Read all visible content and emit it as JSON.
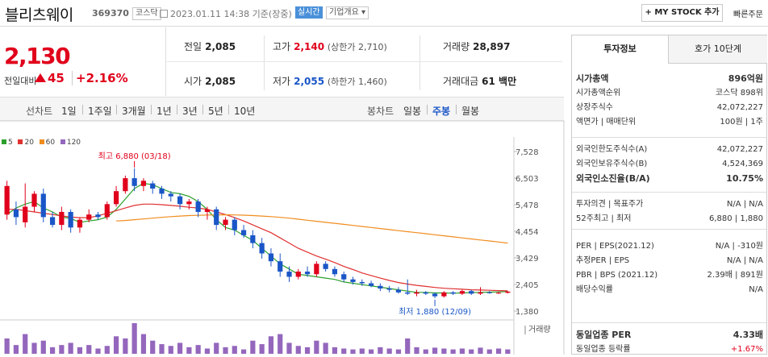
{
  "header": {
    "stock_name": "블리츠웨이",
    "stock_code": "369370",
    "market_badge": "코스닥",
    "datetime": "2023.01.11 14:38 기준(장중)",
    "realtime_badge": "실시간",
    "company_overview": "기업개요 ▾",
    "mystock_button": "+ MY STOCK 추가",
    "quick_order": "빠른주문"
  },
  "price": {
    "current": "2,130",
    "change_label": "전일대비",
    "change_value": "45",
    "change_pct": "+2.16%",
    "color_up": "#e0001b"
  },
  "quote": {
    "prev_close_label": "전일",
    "prev_close": "2,085",
    "high_label": "고가",
    "high": "2,140",
    "upper_limit": "(상한가 2,710)",
    "volume_label": "거래량",
    "volume": "28,897",
    "open_label": "시가",
    "open": "2,085",
    "low_label": "저가",
    "low": "2,055",
    "lower_limit": "(하한가 1,460)",
    "trade_value_label": "거래대금",
    "trade_value": "61 백만"
  },
  "chart_tabs": {
    "line_label": "선차트",
    "periods": [
      "1일",
      "1주일",
      "3개월",
      "1년",
      "3년",
      "5년",
      "10년"
    ],
    "candle_label": "봉차트",
    "candle_periods": [
      "일봉",
      "주봉",
      "월봉"
    ],
    "active_candle": "주봉"
  },
  "chart_legend": [
    {
      "label": "5",
      "color": "#2ca02c"
    },
    {
      "label": "20",
      "color": "#e03030"
    },
    {
      "label": "60",
      "color": "#f08c1e"
    },
    {
      "label": "120",
      "color": "#9467bd"
    }
  ],
  "chart_data": {
    "type": "candlestick",
    "y_ticks": [
      "7,528",
      "6,503",
      "5,478",
      "4,454",
      "3,429",
      "2,405",
      "1,380"
    ],
    "ylim": [
      1380,
      7528
    ],
    "high_annotation": "최고 6,880 (03/18)",
    "low_annotation": "최저 1,880 (12/09)",
    "volume_label": "거래량",
    "series": [
      {
        "name": "5",
        "color": "#2ca02c",
        "values": [
          5100,
          5350,
          5500,
          5600,
          5350,
          5200,
          5000,
          4950,
          4800,
          4850,
          4900,
          5000,
          5300,
          5700,
          6100,
          6300,
          6250,
          6100,
          5950,
          5900,
          5800,
          5600,
          5300,
          4900,
          4600,
          4500,
          4300,
          4100,
          3800,
          3500,
          3200,
          3000,
          2800,
          2750,
          2700,
          2650,
          2600,
          2500,
          2450,
          2400,
          2350,
          2300,
          2250,
          2200,
          2150,
          2100,
          2100,
          2080,
          2080,
          2070,
          2080,
          2090,
          2100,
          2110,
          2120,
          2130
        ]
      },
      {
        "name": "20",
        "color": "#e03030",
        "values": [
          5300,
          5300,
          5250,
          5200,
          5150,
          5100,
          5050,
          5000,
          4980,
          4980,
          5050,
          5150,
          5250,
          5350,
          5450,
          5500,
          5500,
          5480,
          5450,
          5420,
          5380,
          5350,
          5300,
          5200,
          5100,
          4980,
          4850,
          4700,
          4550,
          4400,
          4200,
          4000,
          3800,
          3650,
          3500,
          3380,
          3250,
          3100,
          2980,
          2850,
          2750,
          2650,
          2560,
          2480,
          2420,
          2370,
          2330,
          2290,
          2260,
          2240,
          2220,
          2200,
          2190,
          2180,
          2170,
          2160
        ]
      },
      {
        "name": "60",
        "color": "#f08c1e",
        "values": [
          null,
          null,
          null,
          null,
          null,
          null,
          null,
          null,
          null,
          null,
          null,
          null,
          4850,
          4870,
          4900,
          4930,
          4960,
          4990,
          5020,
          5040,
          5060,
          5070,
          5080,
          5085,
          5090,
          5085,
          5075,
          5060,
          5040,
          5020,
          4990,
          4960,
          4920,
          4880,
          4840,
          4800,
          4760,
          4720,
          4680,
          4640,
          4600,
          4560,
          4520,
          4480,
          4440,
          4400,
          4360,
          4320,
          4280,
          4240,
          4200,
          4160,
          4120,
          4080,
          4040,
          4000
        ]
      }
    ],
    "candles": [
      {
        "o": 5100,
        "c": 6200,
        "h": 6400,
        "l": 4900
      },
      {
        "o": 5300,
        "c": 5000,
        "h": 5600,
        "l": 4700
      },
      {
        "o": 4800,
        "c": 5400,
        "h": 6300,
        "l": 4600
      },
      {
        "o": 5400,
        "c": 5900,
        "h": 6000,
        "l": 5200
      },
      {
        "o": 5900,
        "c": 5000,
        "h": 6100,
        "l": 4800
      },
      {
        "o": 5000,
        "c": 4700,
        "h": 5200,
        "l": 4600
      },
      {
        "o": 4700,
        "c": 5200,
        "h": 5400,
        "l": 4500
      },
      {
        "o": 5200,
        "c": 4600,
        "h": 5300,
        "l": 4400
      },
      {
        "o": 4600,
        "c": 4900,
        "h": 5000,
        "l": 4400
      },
      {
        "o": 4900,
        "c": 5100,
        "h": 5300,
        "l": 4800
      },
      {
        "o": 5100,
        "c": 5000,
        "h": 5200,
        "l": 4900
      },
      {
        "o": 5000,
        "c": 5500,
        "h": 5600,
        "l": 4900
      },
      {
        "o": 5500,
        "c": 6000,
        "h": 6200,
        "l": 5400
      },
      {
        "o": 6000,
        "c": 6500,
        "h": 6600,
        "l": 5900
      },
      {
        "o": 6500,
        "c": 6200,
        "h": 6880,
        "l": 6000
      },
      {
        "o": 6200,
        "c": 6400,
        "h": 6500,
        "l": 6000
      },
      {
        "o": 6300,
        "c": 6100,
        "h": 6400,
        "l": 5900
      },
      {
        "o": 6100,
        "c": 5900,
        "h": 6200,
        "l": 5700
      },
      {
        "o": 5900,
        "c": 5800,
        "h": 6000,
        "l": 5600
      },
      {
        "o": 5800,
        "c": 5500,
        "h": 5900,
        "l": 5300
      },
      {
        "o": 5500,
        "c": 5600,
        "h": 5700,
        "l": 5300
      },
      {
        "o": 5600,
        "c": 5200,
        "h": 5700,
        "l": 5000
      },
      {
        "o": 5200,
        "c": 5300,
        "h": 5400,
        "l": 4900
      },
      {
        "o": 5300,
        "c": 4700,
        "h": 5400,
        "l": 4500
      },
      {
        "o": 4700,
        "c": 4900,
        "h": 5000,
        "l": 4500
      },
      {
        "o": 4900,
        "c": 4500,
        "h": 5000,
        "l": 4300
      },
      {
        "o": 4500,
        "c": 4300,
        "h": 4700,
        "l": 4200
      },
      {
        "o": 4300,
        "c": 4000,
        "h": 4500,
        "l": 3800
      },
      {
        "o": 4000,
        "c": 3600,
        "h": 4200,
        "l": 3400
      },
      {
        "o": 3600,
        "c": 3300,
        "h": 3800,
        "l": 3100
      },
      {
        "o": 3300,
        "c": 2900,
        "h": 3600,
        "l": 2700
      },
      {
        "o": 2900,
        "c": 2700,
        "h": 3100,
        "l": 2500
      },
      {
        "o": 2700,
        "c": 2900,
        "h": 3000,
        "l": 2600
      },
      {
        "o": 2900,
        "c": 2800,
        "h": 3100,
        "l": 2700
      },
      {
        "o": 2800,
        "c": 3200,
        "h": 3300,
        "l": 2700
      },
      {
        "o": 3200,
        "c": 3000,
        "h": 3300,
        "l": 2900
      },
      {
        "o": 3000,
        "c": 2800,
        "h": 3100,
        "l": 2700
      },
      {
        "o": 2800,
        "c": 2600,
        "h": 2900,
        "l": 2500
      },
      {
        "o": 2600,
        "c": 2500,
        "h": 2700,
        "l": 2400
      },
      {
        "o": 2500,
        "c": 2450,
        "h": 2600,
        "l": 2350
      },
      {
        "o": 2450,
        "c": 2350,
        "h": 2550,
        "l": 2300
      },
      {
        "o": 2350,
        "c": 2250,
        "h": 2450,
        "l": 2150
      },
      {
        "o": 2250,
        "c": 2200,
        "h": 2350,
        "l": 2100
      },
      {
        "o": 2200,
        "c": 2100,
        "h": 2300,
        "l": 2050
      },
      {
        "o": 2100,
        "c": 2050,
        "h": 2600,
        "l": 2000
      },
      {
        "o": 2050,
        "c": 2100,
        "h": 2200,
        "l": 1950
      },
      {
        "o": 2100,
        "c": 2050,
        "h": 2150,
        "l": 2000
      },
      {
        "o": 2050,
        "c": 1950,
        "h": 2100,
        "l": 1880
      },
      {
        "o": 1950,
        "c": 2100,
        "h": 2150,
        "l": 1900
      },
      {
        "o": 2100,
        "c": 2050,
        "h": 2150,
        "l": 2000
      },
      {
        "o": 2050,
        "c": 2150,
        "h": 2200,
        "l": 2000
      },
      {
        "o": 2150,
        "c": 2050,
        "h": 2200,
        "l": 2000
      },
      {
        "o": 2050,
        "c": 2100,
        "h": 2300,
        "l": 2000
      },
      {
        "o": 2100,
        "c": 2080,
        "h": 2150,
        "l": 2050
      },
      {
        "o": 2080,
        "c": 2085,
        "h": 2120,
        "l": 2040
      },
      {
        "o": 2085,
        "c": 2130,
        "h": 2140,
        "l": 2055
      }
    ],
    "volumes": [
      35,
      20,
      45,
      25,
      30,
      15,
      20,
      25,
      15,
      20,
      12,
      18,
      40,
      35,
      70,
      45,
      30,
      22,
      18,
      25,
      15,
      20,
      12,
      25,
      15,
      18,
      10,
      30,
      22,
      40,
      45,
      25,
      18,
      15,
      30,
      25,
      15,
      12,
      10,
      12,
      10,
      15,
      12,
      10,
      35,
      15,
      10,
      14,
      12,
      10,
      12,
      10,
      14,
      10,
      12,
      10
    ]
  },
  "panel": {
    "tab_invest": "투자정보",
    "tab_orderbook": "호가 10단계",
    "rows1": [
      {
        "label": "시가총액",
        "value": "896억원",
        "bold": true
      },
      {
        "label": "시가총액순위",
        "value": "코스닥 898위"
      },
      {
        "label": "상장주식수",
        "value": "42,072,227"
      },
      {
        "label": "액면가 | 매매단위",
        "value": "100원 | 1주"
      }
    ],
    "rows2": [
      {
        "label": "외국인한도주식수(A)",
        "value": "42,072,227"
      },
      {
        "label": "외국인보유주식수(B)",
        "value": "4,524,369"
      },
      {
        "label": "외국인소진율(B/A)",
        "value": "10.75%",
        "bold": true
      }
    ],
    "rows3": [
      {
        "label": "투자의견 | 목표주가",
        "value": "N/A | N/A"
      },
      {
        "label": "52주최고 | 최저",
        "value": "6,880 | 1,880"
      }
    ],
    "rows4": [
      {
        "label": "PER | EPS(2021.12)",
        "value": "N/A | -310원"
      },
      {
        "label": "추정PER | EPS",
        "value": "N/A | N/A"
      },
      {
        "label": "PBR | BPS (2021.12)",
        "value": "2.39배 | 891원"
      },
      {
        "label": "배당수익률",
        "value": "N/A"
      }
    ],
    "rows5": [
      {
        "label": "동일업종 PER",
        "value": "4.33배",
        "bold": true
      },
      {
        "label": "동일업종 등락률",
        "value": "+1.67%",
        "red": true
      }
    ]
  }
}
